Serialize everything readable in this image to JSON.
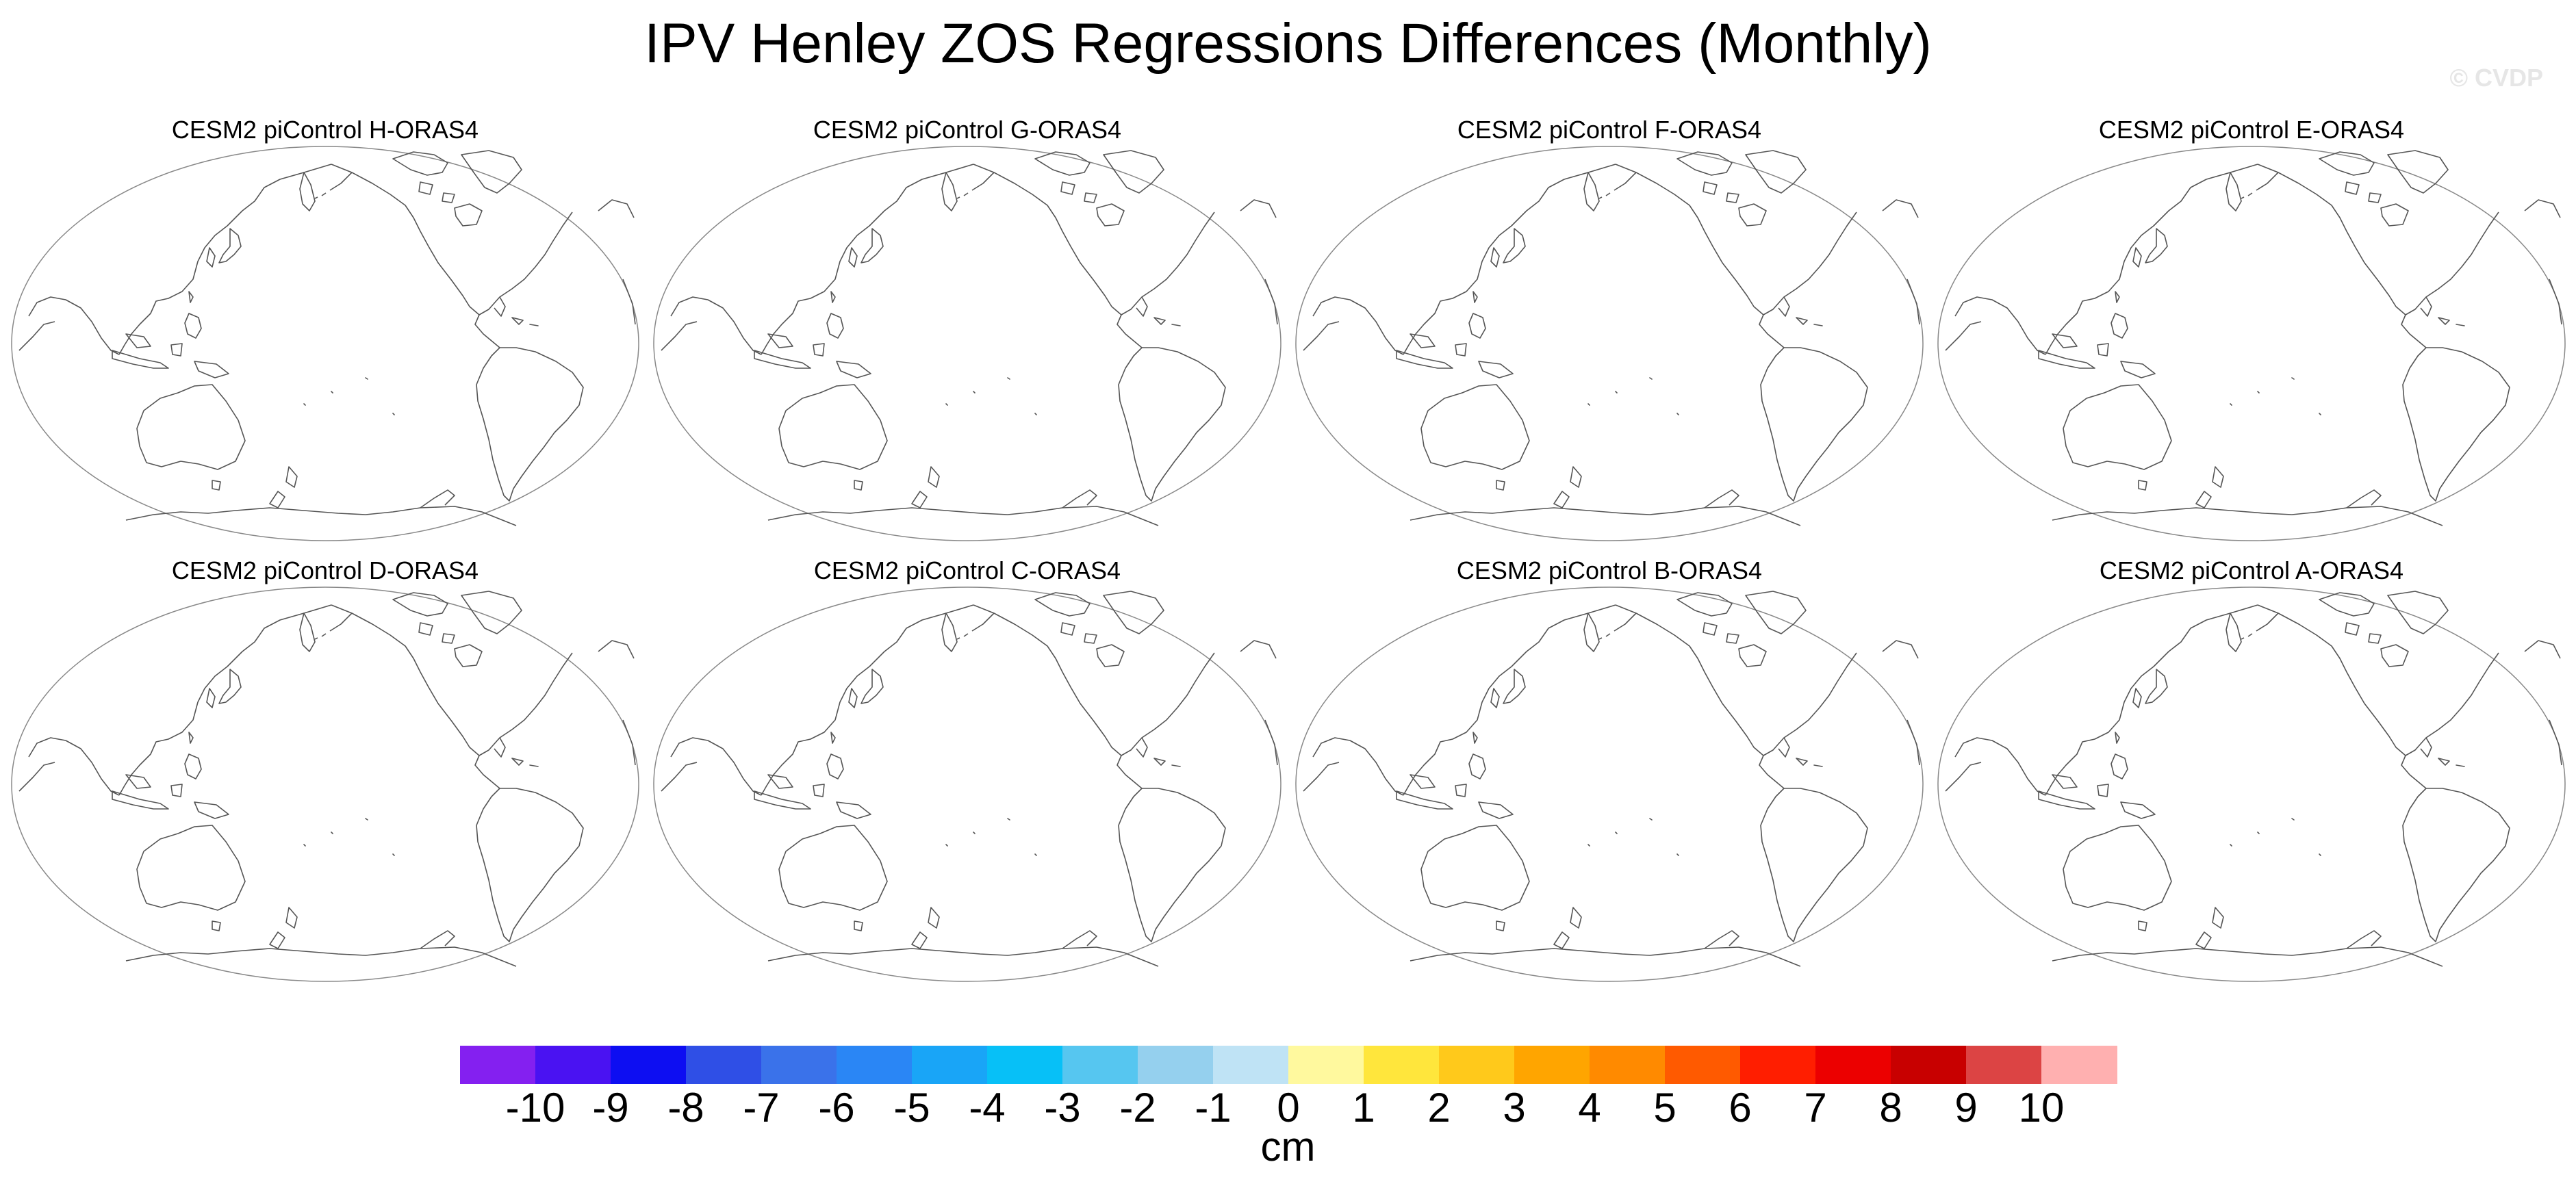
{
  "title": "IPV Henley ZOS Regressions Differences (Monthly)",
  "watermark": "© CVDP",
  "panels": [
    {
      "title": "CESM2 piControl H-ORAS4"
    },
    {
      "title": "CESM2 piControl G-ORAS4"
    },
    {
      "title": "CESM2 piControl F-ORAS4"
    },
    {
      "title": "CESM2 piControl E-ORAS4"
    },
    {
      "title": "CESM2 piControl D-ORAS4"
    },
    {
      "title": "CESM2 piControl C-ORAS4"
    },
    {
      "title": "CESM2 piControl B-ORAS4"
    },
    {
      "title": "CESM2 piControl A-ORAS4"
    }
  ],
  "colorbar": {
    "units": "cm",
    "labels": [
      "-10",
      "-9",
      "-8",
      "-7",
      "-6",
      "-5",
      "-4",
      "-3",
      "-2",
      "-1",
      "0",
      "1",
      "2",
      "3",
      "4",
      "5",
      "6",
      "7",
      "8",
      "9",
      "10"
    ],
    "colors": [
      "#8420f0",
      "#4a12f2",
      "#0d0ef2",
      "#2f4fe6",
      "#3a72ea",
      "#2a86f5",
      "#19a5f7",
      "#07c0f7",
      "#56c6f0",
      "#95d0ee",
      "#bfe3f5",
      "#fff99e",
      "#ffe63c",
      "#ffc91b",
      "#ffa500",
      "#ff8a00",
      "#ff5a00",
      "#ff1e00",
      "#ec0000",
      "#c80000",
      "#dc4444",
      "#ffb0b0"
    ]
  }
}
